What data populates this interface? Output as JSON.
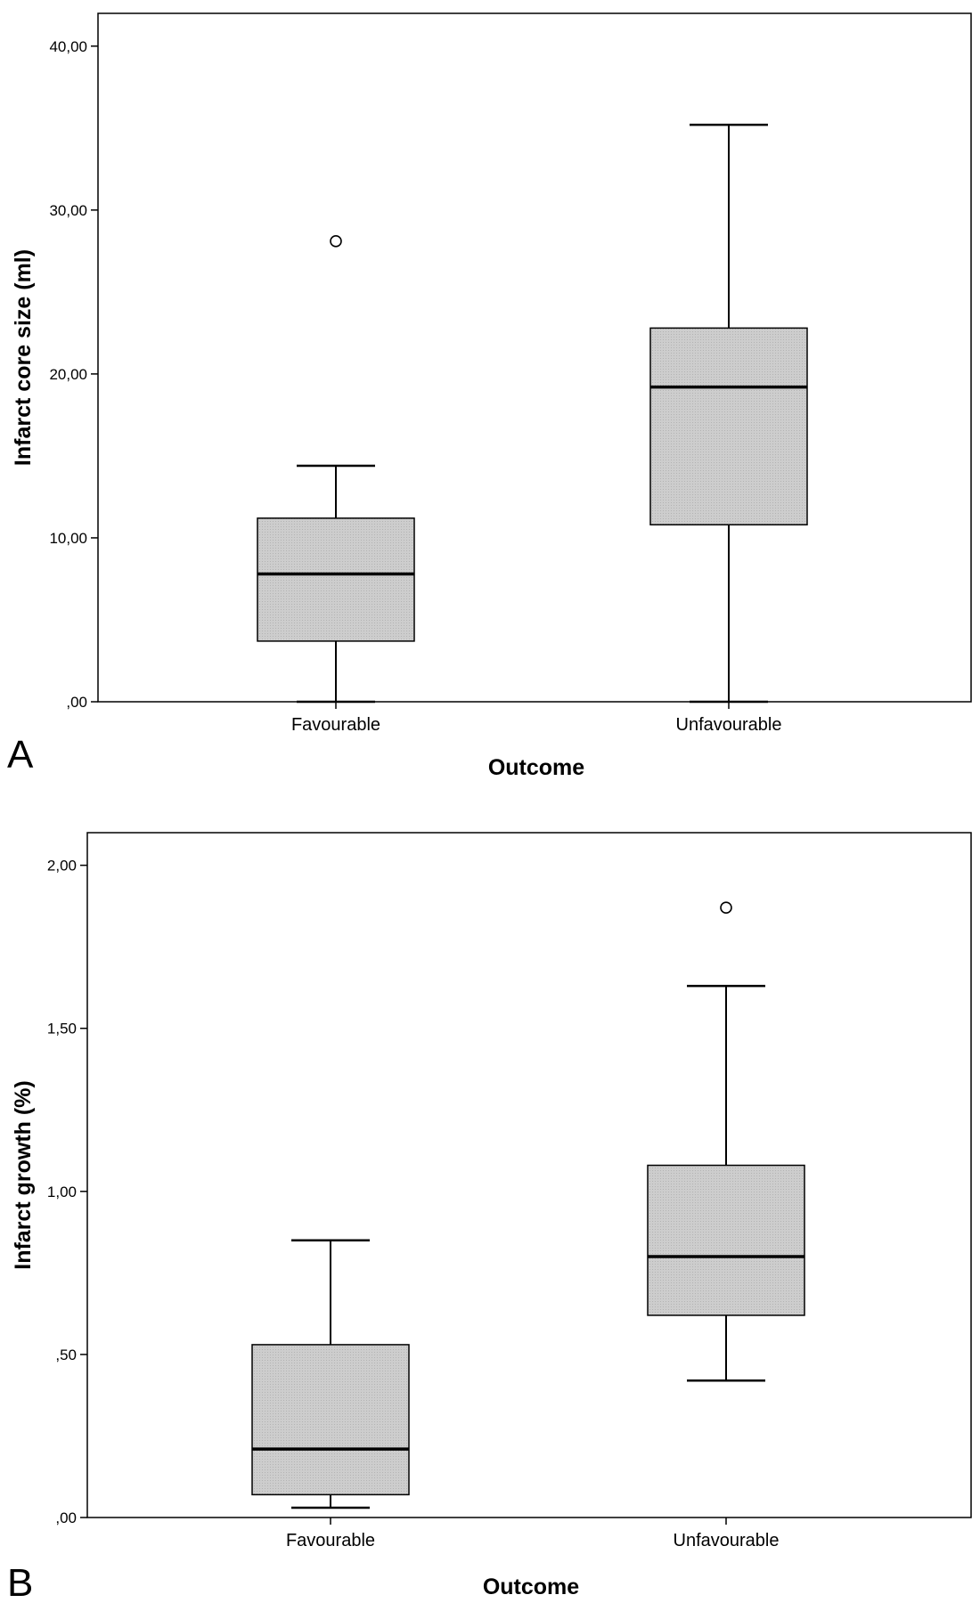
{
  "chart_data": [
    {
      "type": "boxplot",
      "panel_label": "A",
      "xlabel": "Outcome",
      "ylabel": "Infarct core size (ml)",
      "ylim": [
        0,
        42
      ],
      "yticks": [
        0,
        10,
        20,
        30,
        40
      ],
      "ytick_labels": [
        ",00",
        "10,00",
        "20,00",
        "30,00",
        "40,00"
      ],
      "categories": [
        "Favourable",
        "Unfavourable"
      ],
      "boxes": [
        {
          "category": "Favourable",
          "whisker_low": 0.0,
          "q1": 3.7,
          "median": 7.8,
          "q3": 11.2,
          "whisker_high": 14.4,
          "outliers": [
            28.1
          ]
        },
        {
          "category": "Unfavourable",
          "whisker_low": 0.0,
          "q1": 10.8,
          "median": 19.2,
          "q3": 22.8,
          "whisker_high": 35.2,
          "outliers": []
        }
      ],
      "box_color": "#c8c8c8",
      "grid": false
    },
    {
      "type": "boxplot",
      "panel_label": "B",
      "xlabel": "Outcome",
      "ylabel": "Infarct growth (%)",
      "ylim": [
        0,
        2.1
      ],
      "yticks": [
        0,
        0.5,
        1.0,
        1.5,
        2.0
      ],
      "ytick_labels": [
        ",00",
        ",50",
        "1,00",
        "1,50",
        "2,00"
      ],
      "categories": [
        "Favourable",
        "Unfavourable"
      ],
      "boxes": [
        {
          "category": "Favourable",
          "whisker_low": 0.03,
          "q1": 0.07,
          "median": 0.21,
          "q3": 0.53,
          "whisker_high": 0.85,
          "outliers": []
        },
        {
          "category": "Unfavourable",
          "whisker_low": 0.42,
          "q1": 0.62,
          "median": 0.8,
          "q3": 1.08,
          "whisker_high": 1.63,
          "outliers": [
            1.87
          ]
        }
      ],
      "box_color": "#c8c8c8",
      "grid": false
    }
  ]
}
